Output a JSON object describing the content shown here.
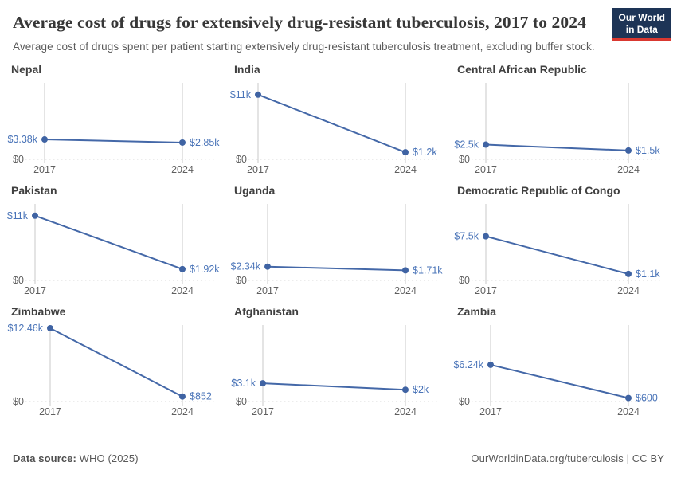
{
  "header": {
    "title": "Average cost of drugs for extensively drug-resistant tuberculosis, 2017 to 2024",
    "subtitle": "Average cost of drugs spent per patient starting extensively drug-resistant tuberculosis treatment, excluding buffer stock.",
    "logo_line1": "Our World",
    "logo_line2": "in Data"
  },
  "footer": {
    "source_label": "Data source:",
    "source_value": " WHO (2025)",
    "right_text": "OurWorldinData.org/tuberculosis | CC BY"
  },
  "chart_data": {
    "type": "line",
    "x": [
      2017,
      2024
    ],
    "x_tick_labels": [
      "2017",
      "2024"
    ],
    "ylabel": "",
    "xlabel": "",
    "y_zero_label": "$0",
    "ylim": [
      0,
      12460
    ],
    "shared_y_scale": true,
    "grid": "zero-baseline-dotted-only",
    "legend": "none",
    "facets": [
      {
        "country": "Nepal",
        "values": [
          3380,
          2850
        ],
        "point_labels": [
          "$3.38k",
          "$2.85k"
        ]
      },
      {
        "country": "India",
        "values": [
          11000,
          1200
        ],
        "point_labels": [
          "$11k",
          "$1.2k"
        ]
      },
      {
        "country": "Central African Republic",
        "values": [
          2500,
          1500
        ],
        "point_labels": [
          "$2.5k",
          "$1.5k"
        ]
      },
      {
        "country": "Pakistan",
        "values": [
          11000,
          1920
        ],
        "point_labels": [
          "$11k",
          "$1.92k"
        ]
      },
      {
        "country": "Uganda",
        "values": [
          2340,
          1710
        ],
        "point_labels": [
          "$2.34k",
          "$1.71k"
        ]
      },
      {
        "country": "Democratic Republic of Congo",
        "values": [
          7500,
          1100
        ],
        "point_labels": [
          "$7.5k",
          "$1.1k"
        ]
      },
      {
        "country": "Zimbabwe",
        "values": [
          12460,
          852
        ],
        "point_labels": [
          "$12.46k",
          "$852"
        ]
      },
      {
        "country": "Afghanistan",
        "values": [
          3100,
          2000
        ],
        "point_labels": [
          "$3.1k",
          "$2k"
        ]
      },
      {
        "country": "Zambia",
        "values": [
          6240,
          600
        ],
        "point_labels": [
          "$6.24k",
          "$600"
        ]
      }
    ]
  },
  "colors": {
    "line": "#4468a8",
    "point": "#3f63a3",
    "value_label": "#4a74b8",
    "axis_line": "#c9c9c9",
    "zero_dotted": "#d9d9d9",
    "tick_text": "#5f5f5f",
    "facet_title": "#404040",
    "logo_bg": "#1d3456",
    "logo_red": "#d93830"
  }
}
